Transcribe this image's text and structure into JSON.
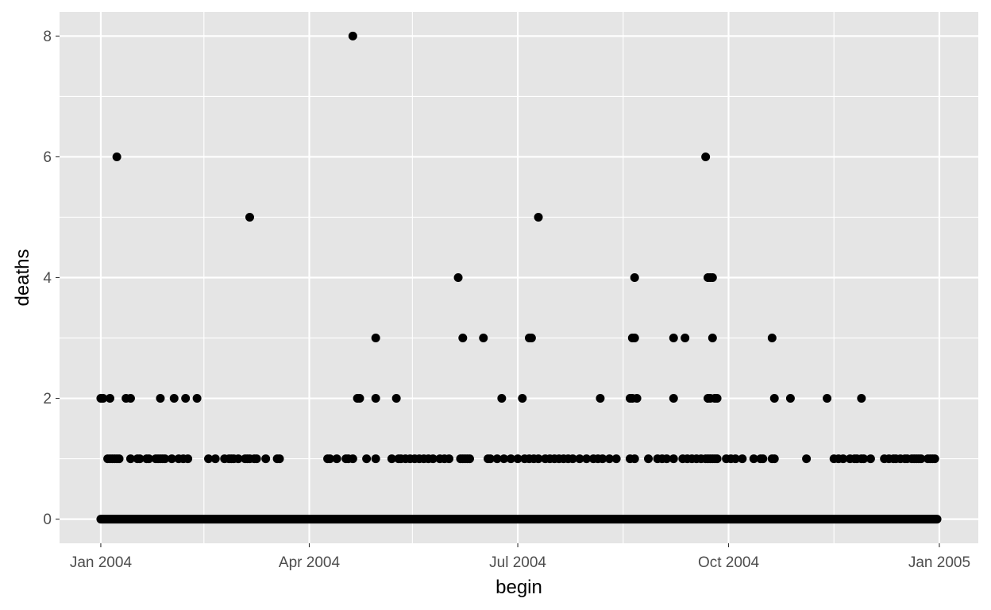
{
  "chart_data": {
    "type": "scatter",
    "xlabel": "begin",
    "ylabel": "deaths",
    "x_type": "date",
    "xlim": [
      "2003-12-14",
      "2005-01-18"
    ],
    "ylim": [
      -0.4,
      8.4
    ],
    "x_ticks": [
      {
        "value": "2004-01-01",
        "label": "Jan 2004"
      },
      {
        "value": "2004-04-01",
        "label": "Apr 2004"
      },
      {
        "value": "2004-07-01",
        "label": "Jul 2004"
      },
      {
        "value": "2004-10-01",
        "label": "Oct 2004"
      },
      {
        "value": "2005-01-01",
        "label": "Jan 2005"
      }
    ],
    "x_minor_breaks": [
      "2004-02-15",
      "2004-05-16",
      "2004-08-16",
      "2004-11-16"
    ],
    "y_ticks": [
      0,
      2,
      4,
      6,
      8
    ],
    "y_minor_breaks": [
      1,
      3,
      5,
      7
    ],
    "grid": true,
    "colors": {
      "panel": "#e5e5e5",
      "grid": "#ffffff",
      "point": "#000000",
      "tick_text": "#4d4d4d",
      "axis_title": "#000000"
    },
    "zero_band": {
      "y": 0,
      "from": "2004-01-01",
      "to": "2004-12-31"
    },
    "points": [
      {
        "x": "2004-01-01",
        "y": 2
      },
      {
        "x": "2004-01-02",
        "y": 2
      },
      {
        "x": "2004-01-05",
        "y": 2
      },
      {
        "x": "2004-01-08",
        "y": 6
      },
      {
        "x": "2004-01-12",
        "y": 2
      },
      {
        "x": "2004-01-14",
        "y": 2
      },
      {
        "x": "2004-01-27",
        "y": 2
      },
      {
        "x": "2004-02-02",
        "y": 2
      },
      {
        "x": "2004-02-07",
        "y": 2
      },
      {
        "x": "2004-02-12",
        "y": 2
      },
      {
        "x": "2004-03-06",
        "y": 5
      },
      {
        "x": "2004-04-20",
        "y": 8
      },
      {
        "x": "2004-04-22",
        "y": 2
      },
      {
        "x": "2004-04-23",
        "y": 2
      },
      {
        "x": "2004-04-30",
        "y": 3
      },
      {
        "x": "2004-04-30",
        "y": 2
      },
      {
        "x": "2004-05-09",
        "y": 2
      },
      {
        "x": "2004-06-05",
        "y": 4
      },
      {
        "x": "2004-06-07",
        "y": 3
      },
      {
        "x": "2004-06-16",
        "y": 3
      },
      {
        "x": "2004-06-24",
        "y": 2
      },
      {
        "x": "2004-07-03",
        "y": 2
      },
      {
        "x": "2004-07-06",
        "y": 3
      },
      {
        "x": "2004-07-07",
        "y": 3
      },
      {
        "x": "2004-07-10",
        "y": 5
      },
      {
        "x": "2004-08-06",
        "y": 2
      },
      {
        "x": "2004-08-19",
        "y": 2
      },
      {
        "x": "2004-08-20",
        "y": 2
      },
      {
        "x": "2004-08-21",
        "y": 4
      },
      {
        "x": "2004-08-20",
        "y": 3
      },
      {
        "x": "2004-08-21",
        "y": 3
      },
      {
        "x": "2004-08-22",
        "y": 2
      },
      {
        "x": "2004-09-07",
        "y": 3
      },
      {
        "x": "2004-09-07",
        "y": 2
      },
      {
        "x": "2004-09-12",
        "y": 3
      },
      {
        "x": "2004-09-21",
        "y": 6
      },
      {
        "x": "2004-09-22",
        "y": 4
      },
      {
        "x": "2004-09-23",
        "y": 4
      },
      {
        "x": "2004-09-24",
        "y": 4
      },
      {
        "x": "2004-09-22",
        "y": 2
      },
      {
        "x": "2004-09-23",
        "y": 2
      },
      {
        "x": "2004-09-24",
        "y": 3
      },
      {
        "x": "2004-09-25",
        "y": 2
      },
      {
        "x": "2004-09-26",
        "y": 2
      },
      {
        "x": "2004-10-20",
        "y": 3
      },
      {
        "x": "2004-10-21",
        "y": 2
      },
      {
        "x": "2004-10-28",
        "y": 2
      },
      {
        "x": "2004-11-13",
        "y": 2
      },
      {
        "x": "2004-11-28",
        "y": 2
      },
      {
        "x": "2004-01-04",
        "y": 1
      },
      {
        "x": "2004-01-05",
        "y": 1
      },
      {
        "x": "2004-01-06",
        "y": 1
      },
      {
        "x": "2004-01-07",
        "y": 1
      },
      {
        "x": "2004-01-08",
        "y": 1
      },
      {
        "x": "2004-01-09",
        "y": 1
      },
      {
        "x": "2004-01-14",
        "y": 1
      },
      {
        "x": "2004-01-17",
        "y": 1
      },
      {
        "x": "2004-01-18",
        "y": 1
      },
      {
        "x": "2004-01-21",
        "y": 1
      },
      {
        "x": "2004-01-22",
        "y": 1
      },
      {
        "x": "2004-01-25",
        "y": 1
      },
      {
        "x": "2004-01-26",
        "y": 1
      },
      {
        "x": "2004-01-27",
        "y": 1
      },
      {
        "x": "2004-01-28",
        "y": 1
      },
      {
        "x": "2004-01-29",
        "y": 1
      },
      {
        "x": "2004-02-01",
        "y": 1
      },
      {
        "x": "2004-02-04",
        "y": 1
      },
      {
        "x": "2004-02-06",
        "y": 1
      },
      {
        "x": "2004-02-08",
        "y": 1
      },
      {
        "x": "2004-02-17",
        "y": 1
      },
      {
        "x": "2004-02-20",
        "y": 1
      },
      {
        "x": "2004-02-24",
        "y": 1
      },
      {
        "x": "2004-02-26",
        "y": 1
      },
      {
        "x": "2004-02-27",
        "y": 1
      },
      {
        "x": "2004-02-28",
        "y": 1
      },
      {
        "x": "2004-03-01",
        "y": 1
      },
      {
        "x": "2004-03-04",
        "y": 1
      },
      {
        "x": "2004-03-05",
        "y": 1
      },
      {
        "x": "2004-03-06",
        "y": 1
      },
      {
        "x": "2004-03-08",
        "y": 1
      },
      {
        "x": "2004-03-09",
        "y": 1
      },
      {
        "x": "2004-03-13",
        "y": 1
      },
      {
        "x": "2004-03-18",
        "y": 1
      },
      {
        "x": "2004-03-19",
        "y": 1
      },
      {
        "x": "2004-04-09",
        "y": 1
      },
      {
        "x": "2004-04-10",
        "y": 1
      },
      {
        "x": "2004-04-13",
        "y": 1
      },
      {
        "x": "2004-04-17",
        "y": 1
      },
      {
        "x": "2004-04-18",
        "y": 1
      },
      {
        "x": "2004-04-20",
        "y": 1
      },
      {
        "x": "2004-04-26",
        "y": 1
      },
      {
        "x": "2004-04-30",
        "y": 1
      },
      {
        "x": "2004-05-07",
        "y": 1
      },
      {
        "x": "2004-05-10",
        "y": 1
      },
      {
        "x": "2004-05-11",
        "y": 1
      },
      {
        "x": "2004-05-13",
        "y": 1
      },
      {
        "x": "2004-05-15",
        "y": 1
      },
      {
        "x": "2004-05-17",
        "y": 1
      },
      {
        "x": "2004-05-19",
        "y": 1
      },
      {
        "x": "2004-05-21",
        "y": 1
      },
      {
        "x": "2004-05-23",
        "y": 1
      },
      {
        "x": "2004-05-25",
        "y": 1
      },
      {
        "x": "2004-05-28",
        "y": 1
      },
      {
        "x": "2004-05-30",
        "y": 1
      },
      {
        "x": "2004-06-01",
        "y": 1
      },
      {
        "x": "2004-06-06",
        "y": 1
      },
      {
        "x": "2004-06-07",
        "y": 1
      },
      {
        "x": "2004-06-08",
        "y": 1
      },
      {
        "x": "2004-06-09",
        "y": 1
      },
      {
        "x": "2004-06-10",
        "y": 1
      },
      {
        "x": "2004-06-18",
        "y": 1
      },
      {
        "x": "2004-06-19",
        "y": 1
      },
      {
        "x": "2004-06-22",
        "y": 1
      },
      {
        "x": "2004-06-25",
        "y": 1
      },
      {
        "x": "2004-06-28",
        "y": 1
      },
      {
        "x": "2004-07-01",
        "y": 1
      },
      {
        "x": "2004-07-04",
        "y": 1
      },
      {
        "x": "2004-07-06",
        "y": 1
      },
      {
        "x": "2004-07-08",
        "y": 1
      },
      {
        "x": "2004-07-10",
        "y": 1
      },
      {
        "x": "2004-07-13",
        "y": 1
      },
      {
        "x": "2004-07-15",
        "y": 1
      },
      {
        "x": "2004-07-17",
        "y": 1
      },
      {
        "x": "2004-07-19",
        "y": 1
      },
      {
        "x": "2004-07-21",
        "y": 1
      },
      {
        "x": "2004-07-23",
        "y": 1
      },
      {
        "x": "2004-07-25",
        "y": 1
      },
      {
        "x": "2004-07-28",
        "y": 1
      },
      {
        "x": "2004-07-31",
        "y": 1
      },
      {
        "x": "2004-08-03",
        "y": 1
      },
      {
        "x": "2004-08-05",
        "y": 1
      },
      {
        "x": "2004-08-07",
        "y": 1
      },
      {
        "x": "2004-08-10",
        "y": 1
      },
      {
        "x": "2004-08-13",
        "y": 1
      },
      {
        "x": "2004-08-19",
        "y": 1
      },
      {
        "x": "2004-08-21",
        "y": 1
      },
      {
        "x": "2004-08-27",
        "y": 1
      },
      {
        "x": "2004-08-31",
        "y": 1
      },
      {
        "x": "2004-09-02",
        "y": 1
      },
      {
        "x": "2004-09-04",
        "y": 1
      },
      {
        "x": "2004-09-07",
        "y": 1
      },
      {
        "x": "2004-09-11",
        "y": 1
      },
      {
        "x": "2004-09-13",
        "y": 1
      },
      {
        "x": "2004-09-15",
        "y": 1
      },
      {
        "x": "2004-09-17",
        "y": 1
      },
      {
        "x": "2004-09-19",
        "y": 1
      },
      {
        "x": "2004-09-21",
        "y": 1
      },
      {
        "x": "2004-09-22",
        "y": 1
      },
      {
        "x": "2004-09-23",
        "y": 1
      },
      {
        "x": "2004-09-24",
        "y": 1
      },
      {
        "x": "2004-09-25",
        "y": 1
      },
      {
        "x": "2004-09-26",
        "y": 1
      },
      {
        "x": "2004-09-30",
        "y": 1
      },
      {
        "x": "2004-10-02",
        "y": 1
      },
      {
        "x": "2004-10-04",
        "y": 1
      },
      {
        "x": "2004-10-07",
        "y": 1
      },
      {
        "x": "2004-10-12",
        "y": 1
      },
      {
        "x": "2004-10-15",
        "y": 1
      },
      {
        "x": "2004-10-16",
        "y": 1
      },
      {
        "x": "2004-10-20",
        "y": 1
      },
      {
        "x": "2004-10-21",
        "y": 1
      },
      {
        "x": "2004-11-04",
        "y": 1
      },
      {
        "x": "2004-11-16",
        "y": 1
      },
      {
        "x": "2004-11-18",
        "y": 1
      },
      {
        "x": "2004-11-20",
        "y": 1
      },
      {
        "x": "2004-11-23",
        "y": 1
      },
      {
        "x": "2004-11-25",
        "y": 1
      },
      {
        "x": "2004-11-26",
        "y": 1
      },
      {
        "x": "2004-11-28",
        "y": 1
      },
      {
        "x": "2004-11-29",
        "y": 1
      },
      {
        "x": "2004-12-02",
        "y": 1
      },
      {
        "x": "2004-12-08",
        "y": 1
      },
      {
        "x": "2004-12-10",
        "y": 1
      },
      {
        "x": "2004-12-12",
        "y": 1
      },
      {
        "x": "2004-12-13",
        "y": 1
      },
      {
        "x": "2004-12-15",
        "y": 1
      },
      {
        "x": "2004-12-17",
        "y": 1
      },
      {
        "x": "2004-12-18",
        "y": 1
      },
      {
        "x": "2004-12-20",
        "y": 1
      },
      {
        "x": "2004-12-21",
        "y": 1
      },
      {
        "x": "2004-12-22",
        "y": 1
      },
      {
        "x": "2004-12-23",
        "y": 1
      },
      {
        "x": "2004-12-24",
        "y": 1
      },
      {
        "x": "2004-12-27",
        "y": 1
      },
      {
        "x": "2004-12-28",
        "y": 1
      },
      {
        "x": "2004-12-29",
        "y": 1
      },
      {
        "x": "2004-12-30",
        "y": 1
      }
    ]
  }
}
